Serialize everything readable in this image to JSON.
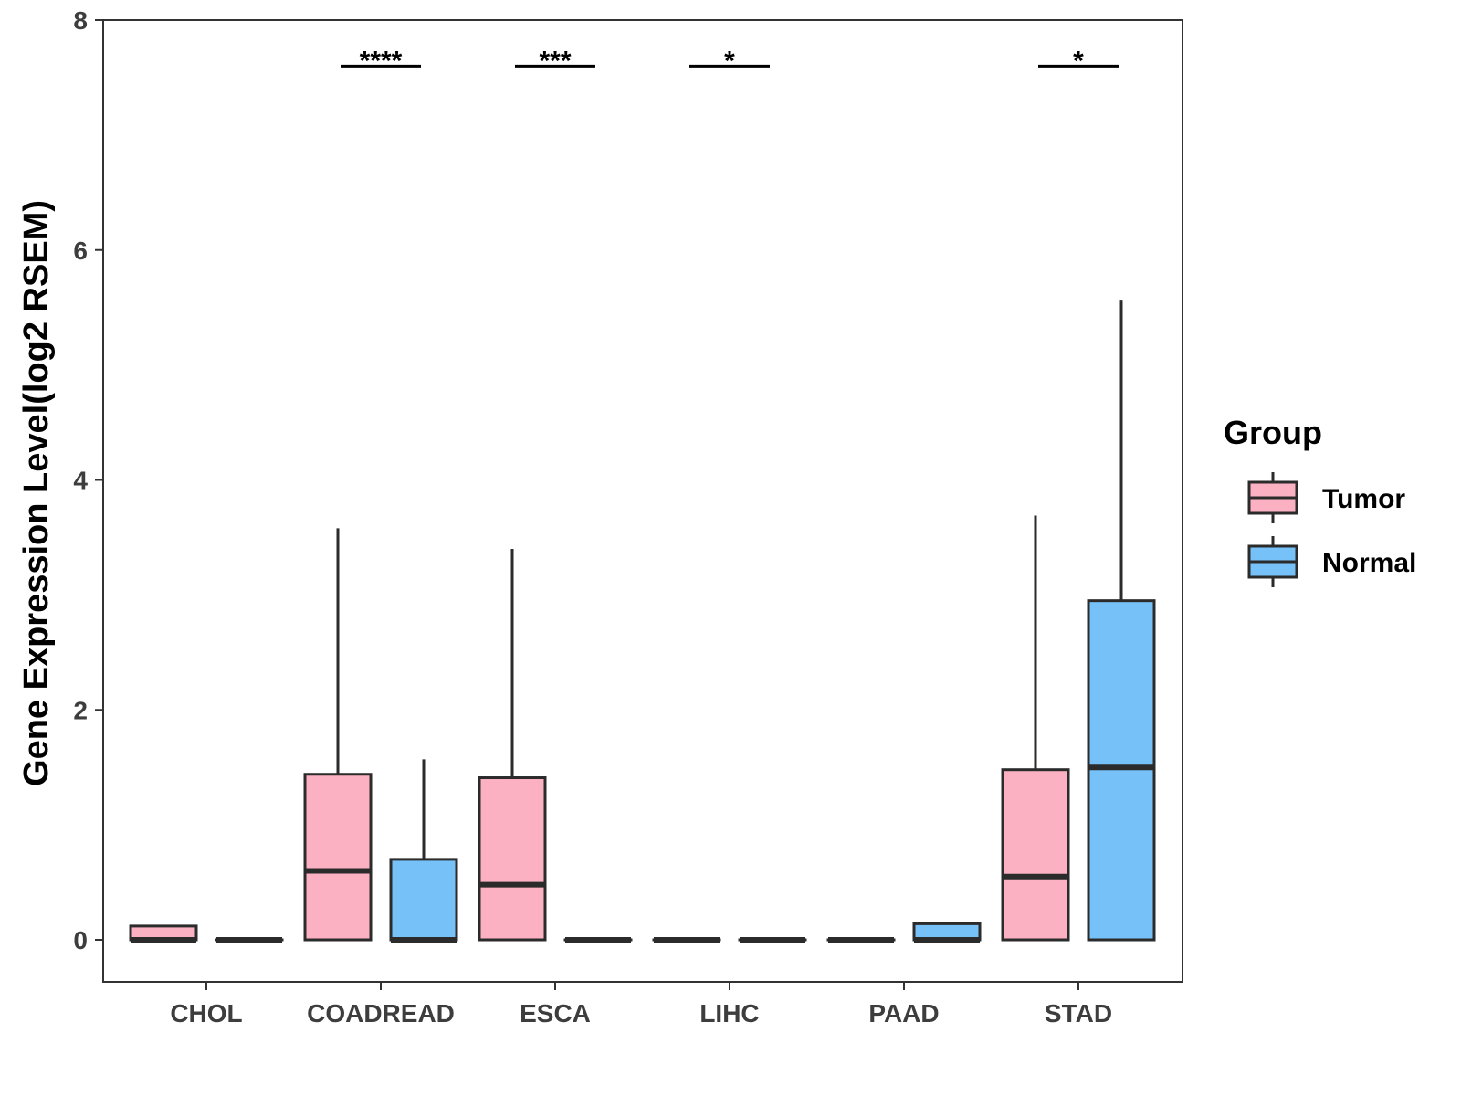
{
  "chart_data": {
    "type": "boxplot",
    "title": "",
    "xlabel": "",
    "ylabel": "Gene Expression Level(log2 RSEM)",
    "ylim": [
      -0.37,
      8
    ],
    "yticks": [
      0,
      2,
      4,
      6,
      8
    ],
    "grid": false,
    "legend": {
      "title": "Group",
      "position": "right",
      "entries": [
        {
          "name": "Tumor",
          "color": "#FBB1C1"
        },
        {
          "name": "Normal",
          "color": "#76C1F8"
        }
      ]
    },
    "categories": [
      "CHOL",
      "COADREAD",
      "ESCA",
      "LIHC",
      "PAAD",
      "STAD"
    ],
    "series": [
      {
        "name": "Tumor",
        "color": "#FBB1C1",
        "boxes": [
          {
            "min": 0,
            "q1": 0,
            "median": 0.0,
            "q3": 0.12,
            "max": 0.12
          },
          {
            "min": 0,
            "q1": 0,
            "median": 0.6,
            "q3": 1.44,
            "max": 3.58
          },
          {
            "min": 0,
            "q1": 0,
            "median": 0.48,
            "q3": 1.41,
            "max": 3.4
          },
          {
            "min": 0,
            "q1": 0,
            "median": 0,
            "q3": 0,
            "max": 0
          },
          {
            "min": 0,
            "q1": 0,
            "median": 0,
            "q3": 0,
            "max": 0
          },
          {
            "min": 0,
            "q1": 0,
            "median": 0.55,
            "q3": 1.48,
            "max": 3.69
          }
        ]
      },
      {
        "name": "Normal",
        "color": "#76C1F8",
        "boxes": [
          {
            "min": 0,
            "q1": 0,
            "median": 0,
            "q3": 0,
            "max": 0
          },
          {
            "min": 0,
            "q1": 0,
            "median": 0,
            "q3": 0.7,
            "max": 1.57
          },
          {
            "min": 0,
            "q1": 0,
            "median": 0,
            "q3": 0,
            "max": 0
          },
          {
            "min": 0,
            "q1": 0,
            "median": 0,
            "q3": 0,
            "max": 0
          },
          {
            "min": 0,
            "q1": 0,
            "median": 0.0,
            "q3": 0.14,
            "max": 0.14
          },
          {
            "min": 0,
            "q1": 0,
            "median": 1.5,
            "q3": 2.95,
            "max": 5.56
          }
        ]
      }
    ],
    "significance": [
      {
        "category": "COADREAD",
        "label": "****",
        "y": 7.6
      },
      {
        "category": "ESCA",
        "label": "***",
        "y": 7.6
      },
      {
        "category": "LIHC",
        "label": "*",
        "y": 7.6
      },
      {
        "category": "STAD",
        "label": "*",
        "y": 7.6
      }
    ]
  }
}
